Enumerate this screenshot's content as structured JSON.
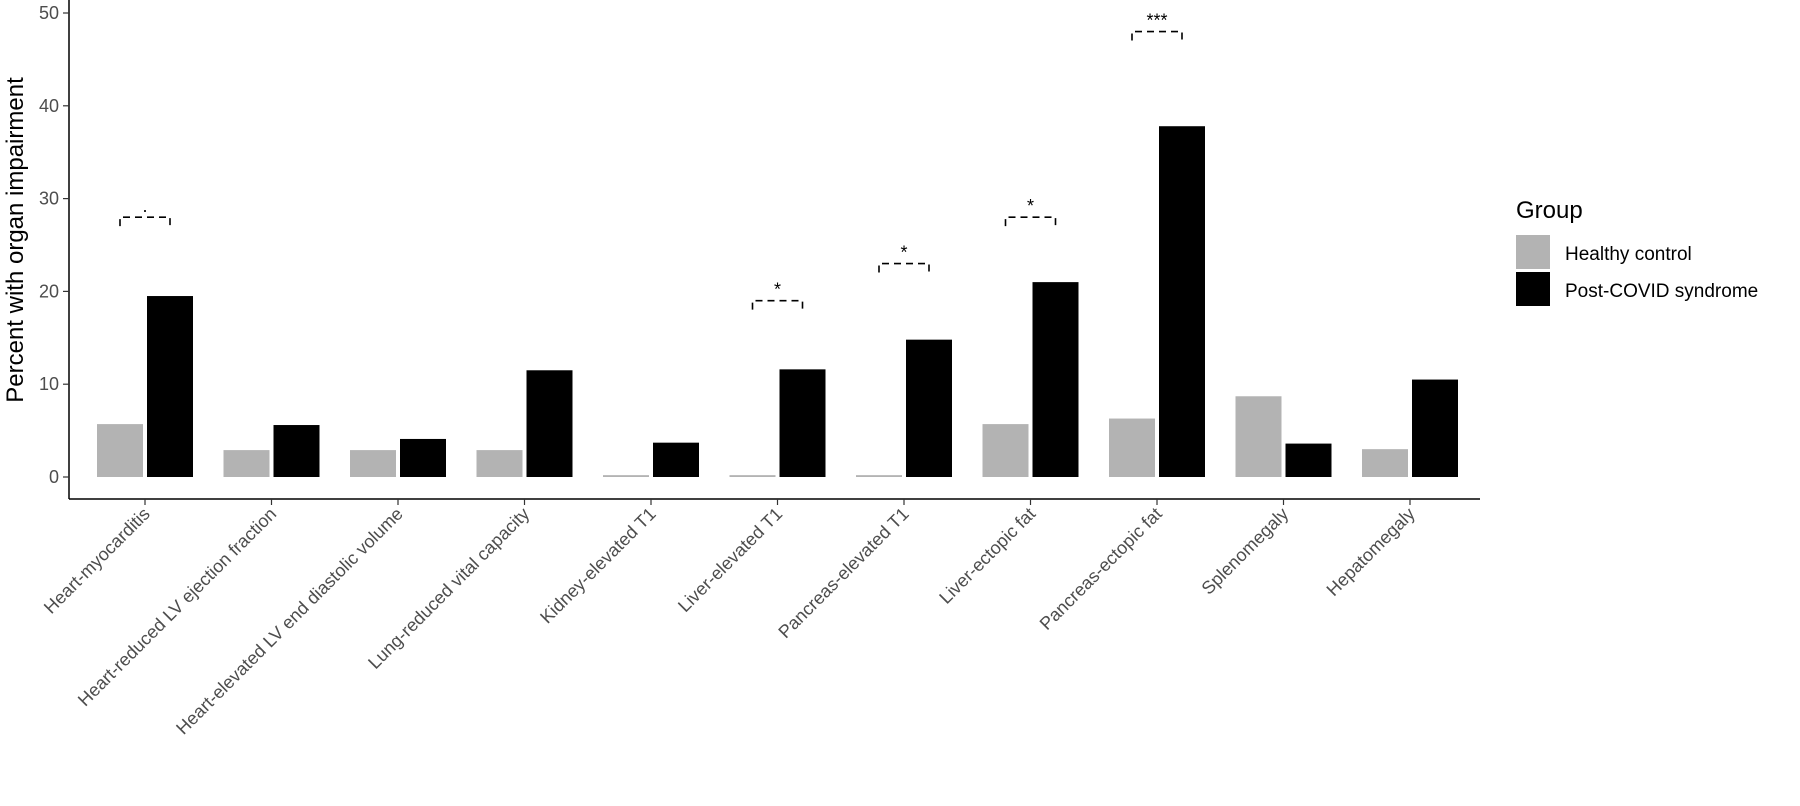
{
  "chart_data": {
    "type": "bar",
    "ylabel": "Percent with organ impairment",
    "ylim": [
      0,
      50
    ],
    "yticks": [
      0,
      10,
      20,
      30,
      40,
      50
    ],
    "grid": false,
    "legend": {
      "title": "Group",
      "placement": "right"
    },
    "categories": [
      "Heart-myocarditis",
      "Heart-reduced LV ejection fraction",
      "Heart-elevated LV end diastolic volume",
      "Lung-reduced vital capacity",
      "Kidney-elevated T1",
      "Liver-elevated T1",
      "Pancreas-elevated T1",
      "Liver-ectopic fat",
      "Pancreas-ectopic fat",
      "Splenomegaly",
      "Hepatomegaly"
    ],
    "series": [
      {
        "name": "Healthy control",
        "color": "#b3b3b3",
        "values": [
          5.7,
          2.9,
          2.9,
          2.9,
          0.2,
          0.2,
          0.2,
          5.7,
          6.3,
          8.7,
          3.0
        ]
      },
      {
        "name": "Post-COVID syndrome",
        "color": "#000000",
        "values": [
          19.5,
          5.6,
          4.1,
          11.5,
          3.7,
          11.6,
          14.8,
          21.0,
          37.8,
          3.6,
          10.5
        ]
      }
    ],
    "significance": [
      {
        "category": "Heart-myocarditis",
        "label": ".",
        "y": 28
      },
      {
        "category": "Liver-elevated T1",
        "label": "*",
        "y": 19
      },
      {
        "category": "Pancreas-elevated T1",
        "label": "*",
        "y": 23
      },
      {
        "category": "Liver-ectopic fat",
        "label": "*",
        "y": 28
      },
      {
        "category": "Pancreas-ectopic fat",
        "label": "***",
        "y": 48
      }
    ]
  }
}
